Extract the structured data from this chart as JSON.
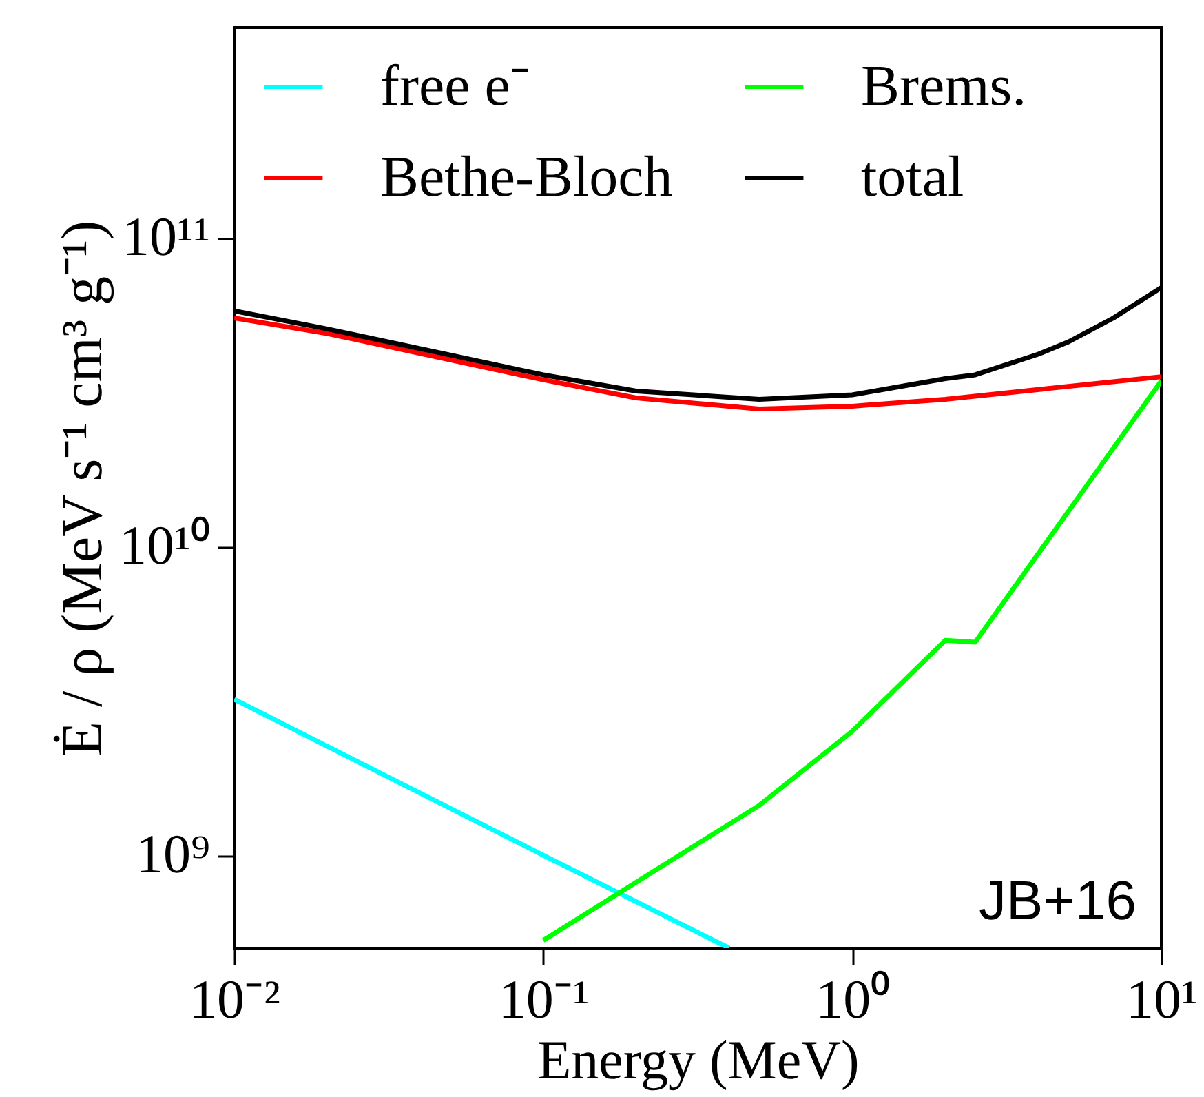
{
  "chart_data": {
    "type": "line",
    "xlabel": "Energy (MeV)",
    "ylabel": "Ė / ρ (MeV s⁻¹ cm³ g⁻¹)",
    "log": "xy",
    "grid": false,
    "legend": "top left",
    "marker": "none",
    "line_style": "solid",
    "xlim": [
      0.01,
      10
    ],
    "xticks": [
      {
        "value": 0.01,
        "label": "10⁻²"
      },
      {
        "value": 0.1,
        "label": "10⁻¹"
      },
      {
        "value": 1,
        "label": "10⁰"
      },
      {
        "value": 10,
        "label": "10¹"
      }
    ],
    "ylim": [
      500000000.0,
      480000000000.0
    ],
    "yticks": [
      {
        "value": 1000000000.0,
        "label": "10⁹"
      },
      {
        "value": 10000000000.0,
        "label": "10¹⁰"
      },
      {
        "value": 100000000000.0,
        "label": "10¹¹"
      }
    ],
    "annotations": [
      "JB+16"
    ],
    "series": [
      {
        "name": "free e⁻",
        "color": "#00ffff",
        "x": [
          0.01,
          0.1,
          0.4
        ],
        "values": [
          3200000000.0,
          1000000000.0,
          500000000.0
        ]
      },
      {
        "name": "Bethe-Bloch",
        "color": "#ff0000",
        "x": [
          0.01,
          0.02,
          0.1,
          0.2,
          0.5,
          1,
          2,
          10
        ],
        "values": [
          55000000000.0,
          49000000000.0,
          34700000000.0,
          30300000000.0,
          27900000000.0,
          28500000000.0,
          30000000000.0,
          35500000000.0
        ]
      },
      {
        "name": "Brems.",
        "color": "#00ff00",
        "x": [
          0.1,
          0.5,
          1,
          2,
          2.5,
          10
        ],
        "values": [
          530000000.0,
          1450000000.0,
          2520000000.0,
          4970000000.0,
          4900000000.0,
          34400000000.0
        ]
      },
      {
        "name": "total",
        "color": "#000000",
        "x": [
          0.01,
          0.02,
          0.1,
          0.2,
          0.5,
          1,
          2,
          2.5,
          4,
          5,
          7,
          10
        ],
        "values": [
          58000000000.0,
          50700000000.0,
          36000000000.0,
          31900000000.0,
          30000000000.0,
          31000000000.0,
          35000000000.0,
          36000000000.0,
          42000000000.0,
          46000000000.0,
          55000000000.0,
          69000000000.0
        ]
      }
    ]
  }
}
